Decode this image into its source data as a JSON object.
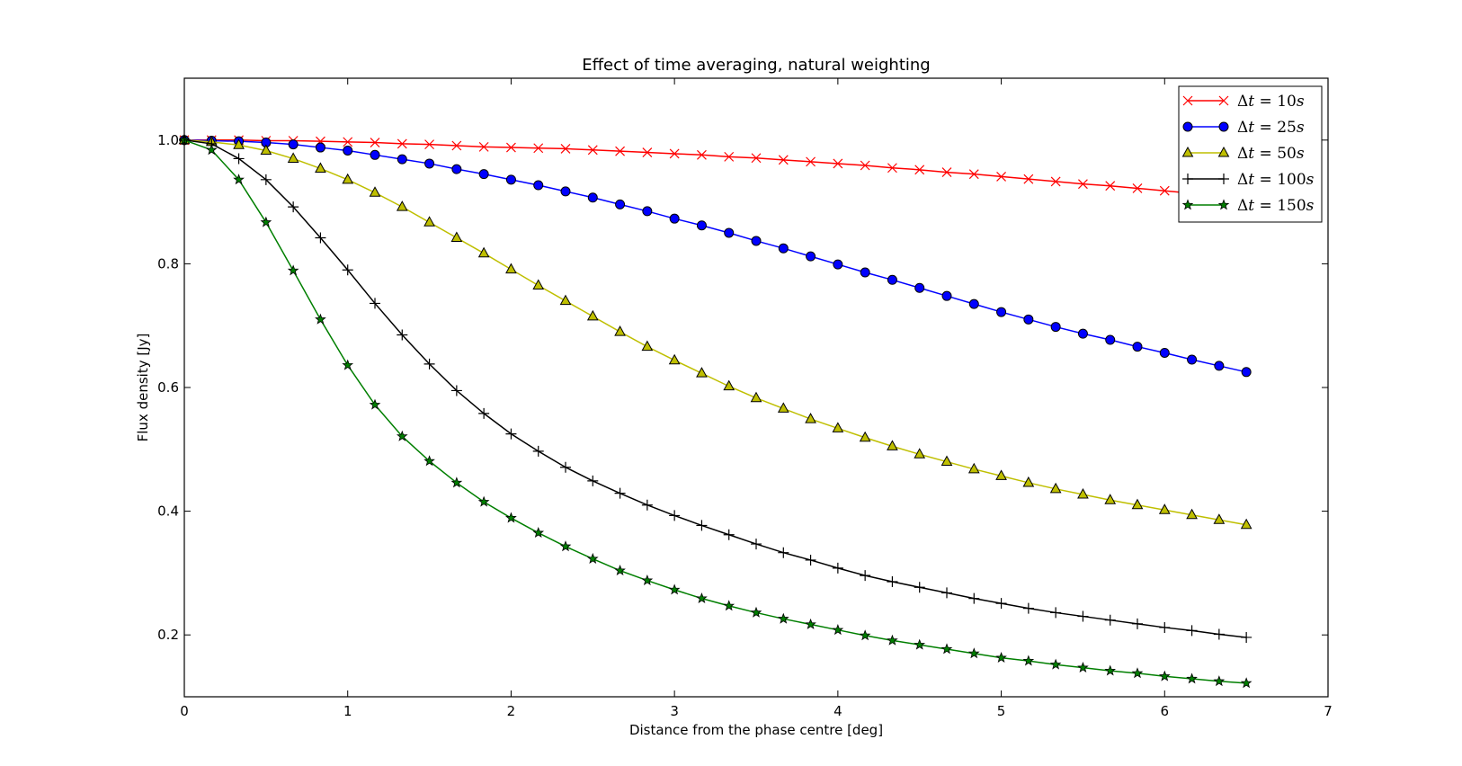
{
  "chart_data": {
    "type": "line",
    "title": "Effect of time averaging, natural weighting",
    "xlabel": "Distance from the phase centre [deg]",
    "ylabel": "Flux density [Jy]",
    "xlim": [
      0,
      7
    ],
    "ylim": [
      0.1,
      1.1
    ],
    "xticks": [
      "0",
      "1",
      "2",
      "3",
      "4",
      "5",
      "6",
      "7"
    ],
    "yticks": [
      "0.2",
      "0.4",
      "0.6",
      "0.8",
      "1.0"
    ],
    "grid": false,
    "legend_position": "top-right",
    "x": [
      0,
      0.1667,
      0.3333,
      0.5,
      0.6667,
      0.8333,
      1.0,
      1.1667,
      1.3333,
      1.5,
      1.6667,
      1.8333,
      2.0,
      2.1667,
      2.3333,
      2.5,
      2.6667,
      2.8333,
      3.0,
      3.1667,
      3.3333,
      3.5,
      3.6667,
      3.8333,
      4.0,
      4.1667,
      4.3333,
      4.5,
      4.6667,
      4.8333,
      5.0,
      5.1667,
      5.3333,
      5.5,
      5.6667,
      5.8333,
      6.0,
      6.1667,
      6.3333,
      6.5
    ],
    "series": [
      {
        "name": "Δt = 10s",
        "color": "#ff0000",
        "marker": "x",
        "values": [
          1.0,
          1.0,
          1.0,
          0.999,
          0.999,
          0.998,
          0.997,
          0.996,
          0.994,
          0.993,
          0.991,
          0.989,
          0.988,
          0.987,
          0.986,
          0.984,
          0.982,
          0.98,
          0.978,
          0.976,
          0.973,
          0.971,
          0.968,
          0.965,
          0.962,
          0.959,
          0.955,
          0.952,
          0.948,
          0.945,
          0.941,
          0.937,
          0.933,
          0.929,
          0.926,
          0.922,
          0.918,
          0.914,
          0.91,
          0.906
        ]
      },
      {
        "name": "Δt = 25s",
        "color": "#0000ff",
        "marker": "circle",
        "values": [
          1.0,
          0.999,
          0.998,
          0.996,
          0.993,
          0.988,
          0.983,
          0.976,
          0.969,
          0.962,
          0.953,
          0.945,
          0.936,
          0.927,
          0.917,
          0.907,
          0.896,
          0.885,
          0.873,
          0.862,
          0.85,
          0.837,
          0.825,
          0.812,
          0.799,
          0.786,
          0.774,
          0.761,
          0.748,
          0.735,
          0.722,
          0.71,
          0.698,
          0.687,
          0.677,
          0.666,
          0.656,
          0.645,
          0.635,
          0.625
        ]
      },
      {
        "name": "Δt = 50s",
        "color": "#bfbf00",
        "marker": "triangle",
        "values": [
          1.0,
          0.997,
          0.992,
          0.983,
          0.97,
          0.954,
          0.936,
          0.915,
          0.892,
          0.867,
          0.842,
          0.817,
          0.791,
          0.765,
          0.74,
          0.715,
          0.69,
          0.666,
          0.644,
          0.623,
          0.602,
          0.583,
          0.566,
          0.549,
          0.534,
          0.519,
          0.505,
          0.492,
          0.48,
          0.468,
          0.457,
          0.446,
          0.436,
          0.427,
          0.418,
          0.41,
          0.402,
          0.394,
          0.386,
          0.378
        ]
      },
      {
        "name": "Δt = 100s",
        "color": "#000000",
        "marker": "plus",
        "values": [
          1.0,
          0.994,
          0.97,
          0.936,
          0.892,
          0.842,
          0.79,
          0.736,
          0.685,
          0.638,
          0.595,
          0.558,
          0.525,
          0.497,
          0.471,
          0.449,
          0.429,
          0.41,
          0.393,
          0.377,
          0.362,
          0.347,
          0.333,
          0.321,
          0.308,
          0.296,
          0.286,
          0.277,
          0.268,
          0.259,
          0.251,
          0.243,
          0.236,
          0.23,
          0.224,
          0.218,
          0.212,
          0.207,
          0.201,
          0.196
        ]
      },
      {
        "name": "Δt = 150s",
        "color": "#007f00",
        "marker": "star",
        "values": [
          1.0,
          0.984,
          0.936,
          0.867,
          0.789,
          0.71,
          0.636,
          0.572,
          0.521,
          0.481,
          0.446,
          0.415,
          0.389,
          0.365,
          0.343,
          0.323,
          0.304,
          0.288,
          0.273,
          0.259,
          0.247,
          0.236,
          0.226,
          0.217,
          0.208,
          0.199,
          0.191,
          0.184,
          0.177,
          0.17,
          0.163,
          0.158,
          0.152,
          0.147,
          0.142,
          0.138,
          0.133,
          0.129,
          0.125,
          0.122
        ]
      }
    ],
    "legend": [
      {
        "delta": "Δ",
        "t": "t",
        "eq": " = ",
        "num": "10",
        "unit": "s"
      },
      {
        "delta": "Δ",
        "t": "t",
        "eq": " = ",
        "num": "25",
        "unit": "s"
      },
      {
        "delta": "Δ",
        "t": "t",
        "eq": " = ",
        "num": "50",
        "unit": "s"
      },
      {
        "delta": "Δ",
        "t": "t",
        "eq": " = ",
        "num": "100",
        "unit": "s"
      },
      {
        "delta": "Δ",
        "t": "t",
        "eq": " = ",
        "num": "150",
        "unit": "s"
      }
    ]
  }
}
